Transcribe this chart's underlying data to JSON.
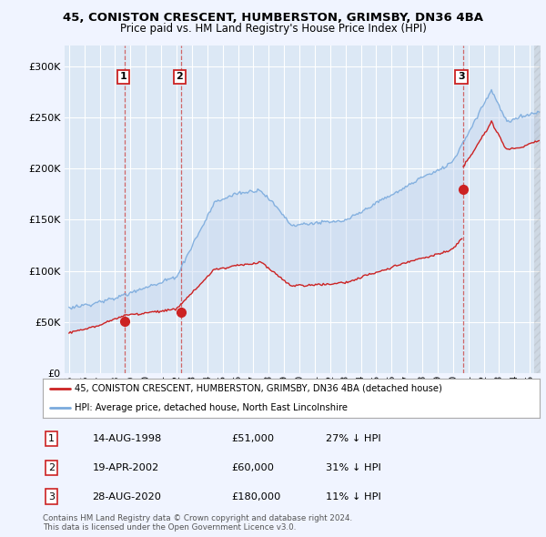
{
  "title_line1": "45, CONISTON CRESCENT, HUMBERSTON, GRIMSBY, DN36 4BA",
  "title_line2": "Price paid vs. HM Land Registry's House Price Index (HPI)",
  "background_color": "#f0f4ff",
  "plot_bg_color": "#dce8f5",
  "legend_line1": "45, CONISTON CRESCENT, HUMBERSTON, GRIMSBY, DN36 4BA (detached house)",
  "legend_line2": "HPI: Average price, detached house, North East Lincolnshire",
  "transactions": [
    {
      "num": 1,
      "date": "14-AUG-1998",
      "price": 51000,
      "pct": "27% ↓ HPI",
      "year": 1998.62
    },
    {
      "num": 2,
      "date": "19-APR-2002",
      "price": 60000,
      "pct": "31% ↓ HPI",
      "year": 2002.3
    },
    {
      "num": 3,
      "date": "28-AUG-2020",
      "price": 180000,
      "pct": "11% ↓ HPI",
      "year": 2020.65
    }
  ],
  "footer_line1": "Contains HM Land Registry data © Crown copyright and database right 2024.",
  "footer_line2": "This data is licensed under the Open Government Licence v3.0.",
  "hpi_color": "#7aaadd",
  "price_color": "#cc2222",
  "shade_color": "#c8d8f0",
  "dashed_color": "#cc4444",
  "ylim": [
    0,
    320000
  ],
  "yticks": [
    0,
    50000,
    100000,
    150000,
    200000,
    250000,
    300000
  ],
  "xlim_start": 1994.7,
  "xlim_end": 2025.7
}
